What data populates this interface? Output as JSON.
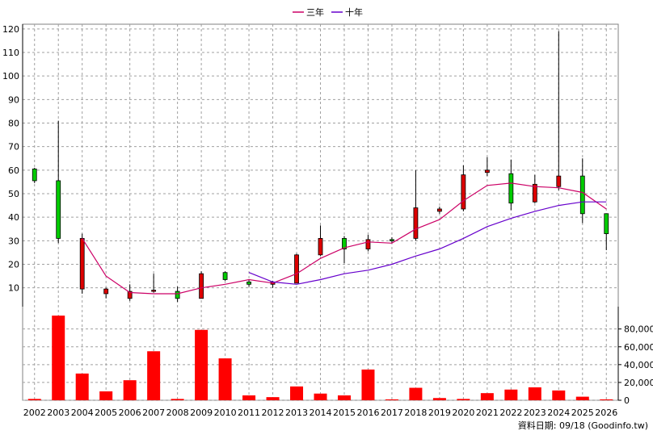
{
  "source_note": "資料日期: 09/18  (Goodinfo.tw)",
  "chart_data": {
    "type": "candlestick",
    "legend": [
      {
        "name": "三年",
        "color": "#cc0066"
      },
      {
        "name": "十年",
        "color": "#6600cc"
      }
    ],
    "legend_position": "top-center",
    "grid": true,
    "price_axis": {
      "ticks": [
        10,
        20,
        30,
        40,
        50,
        60,
        70,
        80,
        90,
        100,
        110,
        120
      ],
      "range": [
        2,
        122
      ],
      "side": "left"
    },
    "volume_axis": {
      "ticks": [
        "0",
        "20,000",
        "40,000",
        "60,000",
        "80,000"
      ],
      "range": [
        0,
        96000
      ],
      "side": "right"
    },
    "years": [
      "2002",
      "2003",
      "2004",
      "2005",
      "2006",
      "2007",
      "2008",
      "2009",
      "2010",
      "2011",
      "2012",
      "2013",
      "2014",
      "2015",
      "2016",
      "2017",
      "2018",
      "2019",
      "2020",
      "2021",
      "2022",
      "2023",
      "2024",
      "2025",
      "2026"
    ],
    "candles": [
      {
        "o": 55.5,
        "h": 61,
        "l": 54.5,
        "c": 60.5
      },
      {
        "o": 31,
        "h": 81,
        "l": 29,
        "c": 55.5
      },
      {
        "o": 31,
        "h": 33,
        "l": 7.5,
        "c": 9.5
      },
      {
        "o": 9.5,
        "h": 10,
        "l": 5.5,
        "c": 7.5
      },
      {
        "o": 8.5,
        "h": 11.5,
        "l": 4.5,
        "c": 5.5
      },
      {
        "o": 9,
        "h": 16,
        "l": 8,
        "c": 8.5
      },
      {
        "o": 5.5,
        "h": 10.5,
        "l": 4,
        "c": 8.5
      },
      {
        "o": 16,
        "h": 17,
        "l": 5.5,
        "c": 5.5
      },
      {
        "o": 13.5,
        "h": 17,
        "l": 13,
        "c": 16.5
      },
      {
        "o": 11.5,
        "h": 13.5,
        "l": 10.5,
        "c": 12.5
      },
      {
        "o": 12.5,
        "h": 13,
        "l": 10,
        "c": 11.5
      },
      {
        "o": 24,
        "h": 24.5,
        "l": 12,
        "c": 12
      },
      {
        "o": 31,
        "h": 36.5,
        "l": 23.5,
        "c": 24
      },
      {
        "o": 26.5,
        "h": 32,
        "l": 20.5,
        "c": 31
      },
      {
        "o": 30.5,
        "h": 32.5,
        "l": 25.5,
        "c": 26.5
      },
      {
        "o": 30.5,
        "h": 31.5,
        "l": 29,
        "c": 30.5
      },
      {
        "o": 44,
        "h": 60,
        "l": 30,
        "c": 31
      },
      {
        "o": 43.5,
        "h": 44.5,
        "l": 41.5,
        "c": 42.5
      },
      {
        "o": 58,
        "h": 62,
        "l": 42.5,
        "c": 43.5
      },
      {
        "o": 60,
        "h": 65.5,
        "l": 57.5,
        "c": 59
      },
      {
        "o": 46,
        "h": 64.5,
        "l": 43,
        "c": 58.5
      },
      {
        "o": 54,
        "h": 58,
        "l": 46,
        "c": 46.5
      },
      {
        "o": 57.5,
        "h": 119,
        "l": 51.5,
        "c": 53
      },
      {
        "o": 41.5,
        "h": 65,
        "l": 37.5,
        "c": 57.5
      },
      {
        "o": 33,
        "h": 41.5,
        "l": 26,
        "c": 41.5
      }
    ],
    "ma3": [
      null,
      null,
      31,
      15,
      8,
      7.5,
      7.5,
      10,
      11.5,
      13.5,
      12,
      16,
      22.5,
      27,
      29.5,
      29,
      35,
      39,
      47,
      53.5,
      54.5,
      53,
      52.5,
      50.5,
      43.5
    ],
    "ma10": [
      null,
      null,
      null,
      null,
      null,
      null,
      null,
      null,
      null,
      16.5,
      12.5,
      11.5,
      13.5,
      16,
      17.5,
      20,
      23.5,
      26.5,
      31,
      36,
      39.5,
      42.5,
      45,
      46.5,
      46.5
    ],
    "volume": [
      1500,
      95000,
      30000,
      10000,
      22500,
      55000,
      1500,
      79000,
      47000,
      5500,
      3500,
      15500,
      7500,
      5500,
      34500,
      1000,
      14000,
      2500,
      1500,
      8000,
      12000,
      14500,
      11000,
      4000,
      1000
    ]
  }
}
